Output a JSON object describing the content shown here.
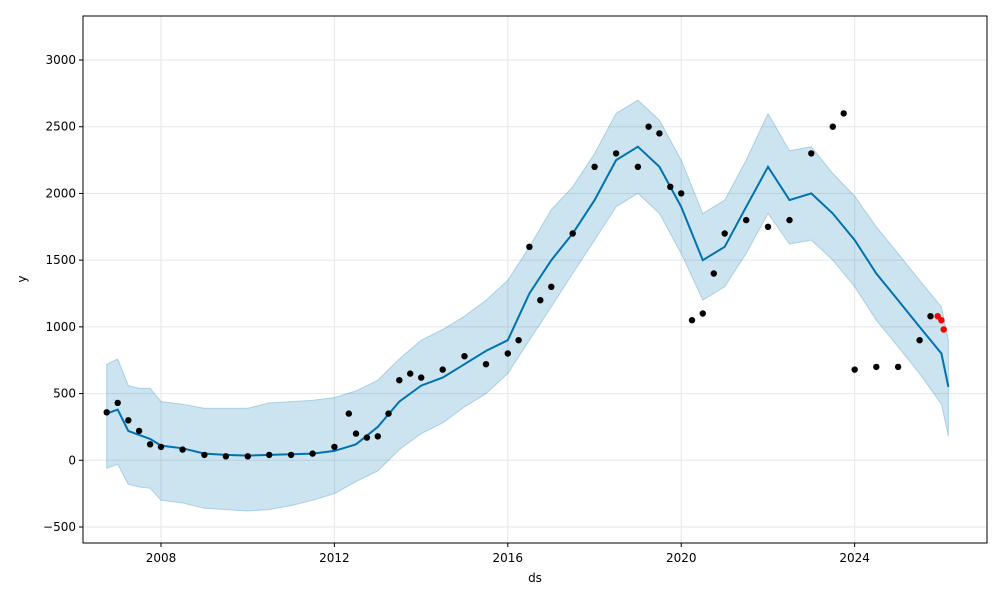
{
  "chart_data": {
    "type": "line",
    "title": "",
    "xlabel": "ds",
    "ylabel": "y",
    "xlim": [
      "2006-03-15",
      "2027-01-20"
    ],
    "ylim": [
      -620,
      3330
    ],
    "grid": true,
    "x_ticks": [
      "2008",
      "2012",
      "2016",
      "2020",
      "2024"
    ],
    "y_ticks": [
      -500,
      0,
      500,
      1000,
      1500,
      2000,
      2500,
      3000
    ],
    "y_tick_labels": [
      "−500",
      "0",
      "500",
      "1000",
      "1500",
      "2000",
      "2500",
      "3000"
    ],
    "colors": {
      "forecast_line": "#0072B2",
      "interval_fill": "#0072B2",
      "observed_points": "#000000",
      "recent_points": "#ff0000",
      "grid": "#e6e6e6"
    },
    "forecast": {
      "x": [
        "2006-10-01",
        "2007-01-01",
        "2007-04-01",
        "2007-07-01",
        "2007-10-01",
        "2008-01-01",
        "2008-07-01",
        "2009-01-01",
        "2009-07-01",
        "2010-01-01",
        "2010-07-01",
        "2011-01-01",
        "2011-07-01",
        "2012-01-01",
        "2012-07-01",
        "2013-01-01",
        "2013-07-01",
        "2014-01-01",
        "2014-07-01",
        "2015-01-01",
        "2015-07-01",
        "2016-01-01",
        "2016-07-01",
        "2017-01-01",
        "2017-07-01",
        "2018-01-01",
        "2018-07-01",
        "2019-01-01",
        "2019-07-01",
        "2020-01-01",
        "2020-07-01",
        "2021-01-01",
        "2021-07-01",
        "2022-01-01",
        "2022-07-01",
        "2023-01-01",
        "2023-07-01",
        "2024-01-01",
        "2024-07-01",
        "2025-01-01",
        "2025-07-01",
        "2026-01-01",
        "2026-03-01"
      ],
      "yhat": [
        350,
        380,
        220,
        190,
        160,
        110,
        90,
        50,
        40,
        35,
        40,
        45,
        50,
        70,
        120,
        250,
        440,
        560,
        620,
        720,
        820,
        900,
        1250,
        1500,
        1700,
        1950,
        2250,
        2350,
        2200,
        1900,
        1500,
        1600,
        1900,
        2200,
        1950,
        2000,
        1850,
        1650,
        1400,
        1200,
        1000,
        800,
        550
      ],
      "lower": [
        -60,
        -30,
        -180,
        -200,
        -210,
        -300,
        -320,
        -360,
        -370,
        -380,
        -370,
        -340,
        -300,
        -250,
        -160,
        -80,
        80,
        200,
        280,
        400,
        500,
        650,
        900,
        1150,
        1400,
        1650,
        1900,
        2000,
        1850,
        1550,
        1200,
        1300,
        1550,
        1850,
        1620,
        1650,
        1500,
        1300,
        1050,
        850,
        650,
        420,
        180
      ],
      "upper": [
        720,
        760,
        560,
        540,
        540,
        440,
        420,
        390,
        390,
        390,
        430,
        440,
        450,
        470,
        520,
        600,
        760,
        900,
        980,
        1080,
        1200,
        1350,
        1600,
        1880,
        2050,
        2300,
        2600,
        2700,
        2550,
        2250,
        1850,
        1950,
        2250,
        2600,
        2320,
        2350,
        2150,
        1980,
        1750,
        1550,
        1350,
        1150,
        900
      ]
    },
    "observed": {
      "x": [
        "2006-10-01",
        "2007-01-01",
        "2007-04-01",
        "2007-07-01",
        "2007-10-01",
        "2008-01-01",
        "2008-07-01",
        "2009-01-01",
        "2009-07-01",
        "2010-01-01",
        "2010-07-01",
        "2011-01-01",
        "2011-07-01",
        "2012-01-01",
        "2012-05-01",
        "2012-07-01",
        "2012-10-01",
        "2013-01-01",
        "2013-04-01",
        "2013-07-01",
        "2013-10-01",
        "2014-01-01",
        "2014-07-01",
        "2015-01-01",
        "2015-07-01",
        "2016-01-01",
        "2016-04-01",
        "2016-07-01",
        "2016-10-01",
        "2017-01-01",
        "2017-07-01",
        "2018-01-01",
        "2018-07-01",
        "2019-01-01",
        "2019-04-01",
        "2019-07-01",
        "2019-10-01",
        "2020-01-01",
        "2020-04-01",
        "2020-07-01",
        "2020-10-01",
        "2021-01-01",
        "2021-07-01",
        "2022-01-01",
        "2022-07-01",
        "2023-01-01",
        "2023-07-01",
        "2023-10-01",
        "2024-01-01",
        "2024-07-01",
        "2025-01-01",
        "2025-07-01",
        "2025-10-01"
      ],
      "y": [
        360,
        430,
        300,
        220,
        120,
        100,
        80,
        40,
        30,
        30,
        40,
        40,
        50,
        100,
        350,
        200,
        170,
        180,
        350,
        600,
        650,
        620,
        680,
        780,
        720,
        800,
        900,
        1600,
        1200,
        1300,
        1700,
        2200,
        2300,
        2200,
        2500,
        2450,
        2050,
        2000,
        1050,
        1100,
        1400,
        1700,
        1800,
        1750,
        1800,
        2300,
        2500,
        2600,
        680,
        700,
        700,
        900,
        1080
      ],
      "recent_x": [
        "2025-12-01",
        "2026-01-01",
        "2026-01-20"
      ],
      "recent_y": [
        1080,
        1050,
        980
      ]
    }
  }
}
